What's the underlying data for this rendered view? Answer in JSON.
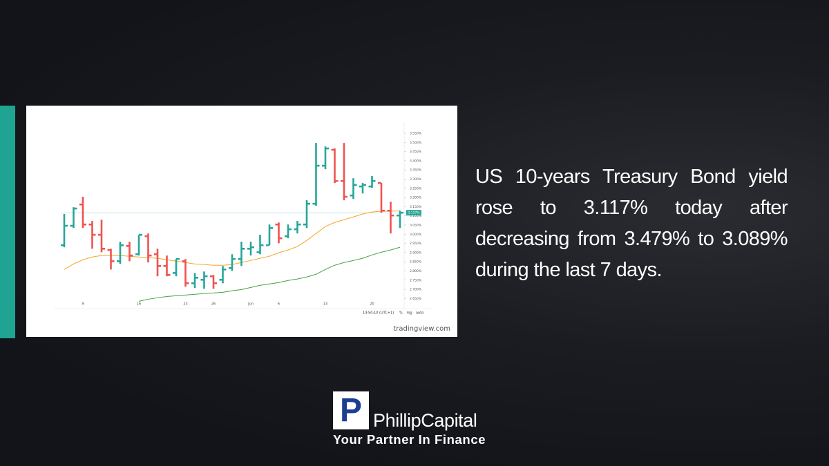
{
  "chart_data": {
    "type": "ohlc",
    "categories": [
      null,
      null,
      "9",
      null,
      null,
      null,
      null,
      null,
      "16",
      null,
      null,
      null,
      null,
      "23",
      null,
      null,
      "26",
      null,
      null,
      null,
      "Jun",
      null,
      null,
      "6",
      null,
      null,
      null,
      null,
      "13",
      null,
      null,
      null,
      null,
      "20",
      null,
      null,
      null
    ],
    "open": [
      2.94,
      3.046,
      3.162,
      3.053,
      2.997,
      2.914,
      2.853,
      2.936,
      2.891,
      2.989,
      2.891,
      2.827,
      2.789,
      2.853,
      2.733,
      2.752,
      2.771,
      2.752,
      2.816,
      2.865,
      2.921,
      2.902,
      2.94,
      3.053,
      2.989,
      3.027,
      3.053,
      3.166,
      3.373,
      3.46,
      3.29,
      3.211,
      3.26,
      3.26,
      3.279,
      3.128,
      3.102
    ],
    "high": [
      3.11,
      3.147,
      3.204,
      3.072,
      3.079,
      2.921,
      2.959,
      2.959,
      2.997,
      3.004,
      2.921,
      2.884,
      2.865,
      2.865,
      2.789,
      2.797,
      2.778,
      2.827,
      2.891,
      2.959,
      2.959,
      2.997,
      3.053,
      3.064,
      3.053,
      3.072,
      3.185,
      3.497,
      3.478,
      3.467,
      3.497,
      3.305,
      3.279,
      3.317,
      3.279,
      3.177,
      3.128
    ],
    "low": [
      2.929,
      3.034,
      3.034,
      2.921,
      2.902,
      2.808,
      2.838,
      2.853,
      2.884,
      2.846,
      2.771,
      2.771,
      2.771,
      2.714,
      2.707,
      2.703,
      2.703,
      2.733,
      2.801,
      2.827,
      2.884,
      2.891,
      2.94,
      2.951,
      2.978,
      3.004,
      3.034,
      3.155,
      3.354,
      3.279,
      3.185,
      3.192,
      3.222,
      3.253,
      3.117,
      3.004,
      3.034
    ],
    "close": [
      3.046,
      3.14,
      3.053,
      2.997,
      2.921,
      2.853,
      2.94,
      2.884,
      2.997,
      2.884,
      2.827,
      2.778,
      2.865,
      2.733,
      2.763,
      2.771,
      2.733,
      2.808,
      2.865,
      2.921,
      2.929,
      2.94,
      3.034,
      2.978,
      3.027,
      3.053,
      3.166,
      3.373,
      3.467,
      3.29,
      3.204,
      3.268,
      3.268,
      3.29,
      3.128,
      3.102,
      3.117
    ],
    "up_color": "#26a69a",
    "down_color": "#ef5350",
    "lines": [
      {
        "color": "#f5a623",
        "values": [
          2.808,
          2.838,
          2.861,
          2.876,
          2.884,
          2.884,
          2.884,
          2.88,
          2.876,
          2.872,
          2.869,
          2.861,
          2.853,
          2.846,
          2.838,
          2.835,
          2.831,
          2.831,
          2.835,
          2.846,
          2.857,
          2.869,
          2.88,
          2.899,
          2.914,
          2.933,
          2.966,
          3.004,
          3.042,
          3.064,
          3.079,
          3.094,
          3.11,
          3.121,
          3.125,
          3.125,
          3.128
        ]
      },
      {
        "color": "#43a047",
        "values": [
          null,
          null,
          null,
          null,
          null,
          null,
          null,
          null,
          2.635,
          2.646,
          2.654,
          2.661,
          2.665,
          2.669,
          2.673,
          2.677,
          2.68,
          2.684,
          2.692,
          2.699,
          2.71,
          2.722,
          2.729,
          2.737,
          2.748,
          2.756,
          2.767,
          2.782,
          2.808,
          2.831,
          2.846,
          2.857,
          2.869,
          2.887,
          2.902,
          2.914,
          2.929
        ]
      }
    ],
    "ylim": [
      2.595,
      3.58
    ],
    "yticks": [
      {
        "value": 3.55,
        "label": "3.550%"
      },
      {
        "value": 3.5,
        "label": "3.500%"
      },
      {
        "value": 3.45,
        "label": "3.450%"
      },
      {
        "value": 3.4,
        "label": "3.400%"
      },
      {
        "value": 3.35,
        "label": "3.350%"
      },
      {
        "value": 3.3,
        "label": "3.300%"
      },
      {
        "value": 3.25,
        "label": "3.250%"
      },
      {
        "value": 3.2,
        "label": "3.200%"
      },
      {
        "value": 3.15,
        "label": "3.150%"
      },
      {
        "value": 3.1,
        "label": "3.100%"
      },
      {
        "value": 3.05,
        "label": "3.050%"
      },
      {
        "value": 3.0,
        "label": "3.000%"
      },
      {
        "value": 2.95,
        "label": "2.950%"
      },
      {
        "value": 2.9,
        "label": "2.900%"
      },
      {
        "value": 2.85,
        "label": "2.850%"
      },
      {
        "value": 2.8,
        "label": "2.800%"
      },
      {
        "value": 2.75,
        "label": "2.750%"
      },
      {
        "value": 2.7,
        "label": "2.700%"
      },
      {
        "value": 2.65,
        "label": "2.650%"
      }
    ],
    "last_price": {
      "value": 3.117,
      "label": "3.117%",
      "color": "#26a69a"
    },
    "clock": "14:50:10 (UTC+1)",
    "toolbar": [
      "%",
      "log",
      "auto"
    ],
    "watermark": "tradingview.com"
  },
  "post": {
    "text": "US 10-years Treasury Bond yield rose to 3.117% today after decreasing from 3.479% to 3.089% during the last 7 days."
  },
  "logo": {
    "mark": "P",
    "name": "PhillipCapital",
    "tagline": "Your Partner In Finance"
  }
}
